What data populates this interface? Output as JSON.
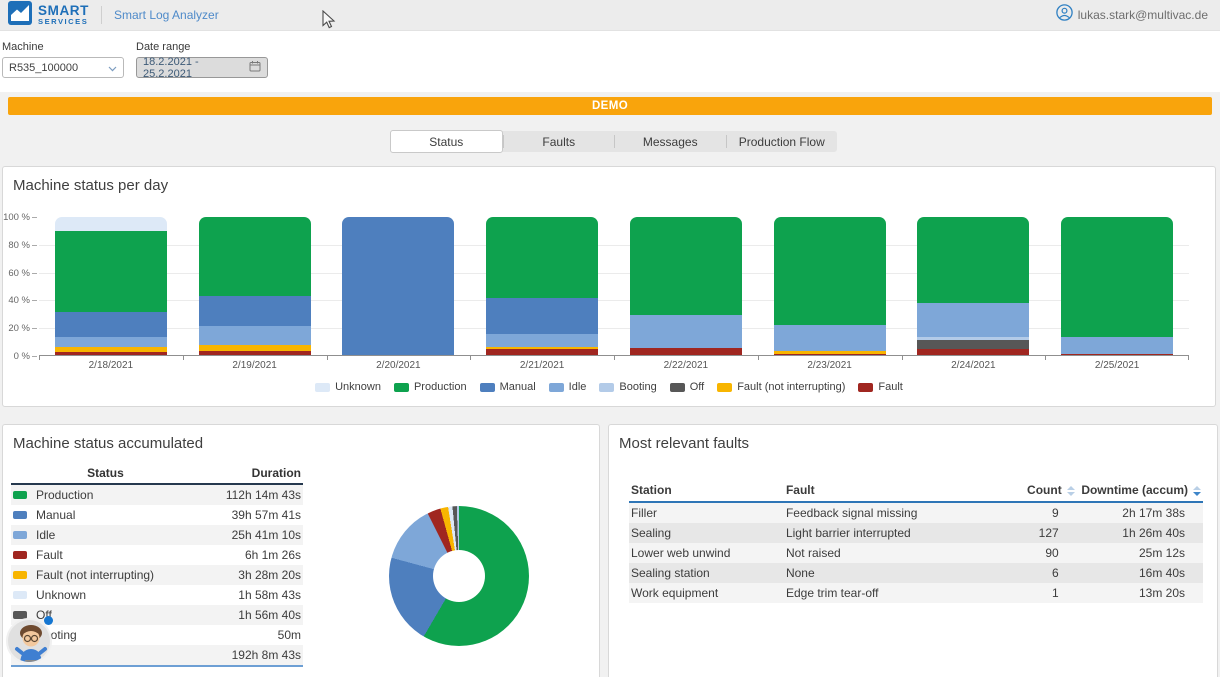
{
  "header": {
    "logo_line1": "SMART",
    "logo_line2": "SERVICES",
    "app_title": "Smart Log Analyzer",
    "user_email": "lukas.stark@multivac.de"
  },
  "filters": {
    "machine_label": "Machine",
    "machine_value": "R535_100000",
    "date_label": "Date range",
    "date_value": "18.2.2021 - 25.2.2021"
  },
  "banner": {
    "label": "DEMO",
    "color": "#F9A40C"
  },
  "tabs": {
    "items": [
      "Status",
      "Faults",
      "Messages",
      "Production Flow"
    ],
    "active": "Status"
  },
  "colors": {
    "Unknown": "#dde9f7",
    "Production": "#0ea24e",
    "Manual": "#4e7fbe",
    "Idle": "#7ea7d8",
    "Booting": "#b3cbe8",
    "Off": "#575757",
    "Fault (not interrupting)": "#f8b500",
    "Fault": "#a02620"
  },
  "chart_data": [
    {
      "type": "bar",
      "stacked": true,
      "title": "Machine status per day",
      "unit": "percent",
      "categories": [
        "2/18/2021",
        "2/19/2021",
        "2/20/2021",
        "2/21/2021",
        "2/22/2021",
        "2/23/2021",
        "2/24/2021",
        "2/25/2021"
      ],
      "stack_order": [
        "Fault",
        "Fault (not interrupting)",
        "Off",
        "Booting",
        "Idle",
        "Manual",
        "Production",
        "Unknown"
      ],
      "series": [
        {
          "name": "Fault",
          "values": [
            2,
            3,
            0,
            4,
            5,
            1,
            4,
            1
          ]
        },
        {
          "name": "Fault (not interrupting)",
          "values": [
            4,
            4,
            0,
            2,
            0,
            2,
            0,
            0
          ]
        },
        {
          "name": "Off",
          "values": [
            0,
            0,
            0,
            0,
            0,
            0,
            7,
            0
          ]
        },
        {
          "name": "Booting",
          "values": [
            0,
            0,
            0,
            0,
            0,
            0,
            2,
            0
          ]
        },
        {
          "name": "Idle",
          "values": [
            7,
            14,
            0,
            9,
            24,
            19,
            25,
            12
          ]
        },
        {
          "name": "Manual",
          "values": [
            18,
            22,
            100,
            26,
            0,
            0,
            0,
            0
          ]
        },
        {
          "name": "Production",
          "values": [
            59,
            57,
            0,
            59,
            71,
            78,
            62,
            87
          ]
        },
        {
          "name": "Unknown",
          "values": [
            10,
            0,
            0,
            0,
            0,
            0,
            0,
            0
          ]
        }
      ],
      "y_ticks": [
        "100 %",
        "80 %",
        "60 %",
        "40 %",
        "20 %",
        "0 %"
      ],
      "ylim": [
        0,
        100
      ],
      "grid": true,
      "legend_position": "bottom",
      "legend_order": [
        "Unknown",
        "Production",
        "Manual",
        "Idle",
        "Booting",
        "Off",
        "Fault (not interrupting)",
        "Fault"
      ]
    },
    {
      "type": "pie",
      "donut": true,
      "title": "Machine status accumulated",
      "labels": [
        "Production",
        "Manual",
        "Idle",
        "Fault",
        "Fault (not interrupting)",
        "Unknown",
        "Off",
        "Booting"
      ],
      "values": [
        58.4,
        20.8,
        13.4,
        3.1,
        1.8,
        1.0,
        1.0,
        0.4
      ]
    }
  ],
  "accumulated": {
    "title": "Machine status accumulated",
    "columns": [
      "Status",
      "Duration"
    ],
    "rows": [
      [
        "Production",
        "112h 14m 43s"
      ],
      [
        "Manual",
        "39h 57m 41s"
      ],
      [
        "Idle",
        "25h 41m 10s"
      ],
      [
        "Fault",
        "6h 1m 26s"
      ],
      [
        "Fault (not interrupting)",
        "3h 28m 20s"
      ],
      [
        "Unknown",
        "1h 58m 43s"
      ],
      [
        "Off",
        "1h 56m 40s"
      ],
      [
        "Booting",
        "50m"
      ]
    ],
    "total_row": [
      "Total",
      "192h 8m 43s"
    ]
  },
  "faults": {
    "title": "Most relevant faults",
    "columns": [
      "Station",
      "Fault",
      "Count",
      "Downtime (accum)"
    ],
    "sortable": [
      "Count",
      "Downtime (accum)"
    ],
    "sorted_by": "Downtime (accum)",
    "rows": [
      [
        "Filler",
        "Feedback signal missing",
        "9",
        "2h 17m 38s"
      ],
      [
        "Sealing",
        "Light barrier interrupted",
        "127",
        "1h 26m 40s"
      ],
      [
        "Lower web unwind",
        "Not raised",
        "90",
        "25m 12s"
      ],
      [
        "Sealing station",
        "None",
        "6",
        "16m 40s"
      ],
      [
        "Work equipment",
        "Edge trim tear-off",
        "1",
        "13m 20s"
      ]
    ]
  }
}
